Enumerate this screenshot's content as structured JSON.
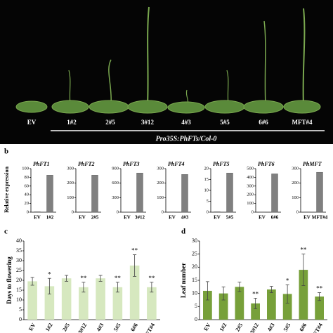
{
  "panel_labels": [
    "b",
    "c",
    "d"
  ],
  "photo": {
    "labels": [
      "EV",
      "1#2",
      "2#5",
      "3#12",
      "4#3",
      "5#5",
      "6#6",
      "MFT#4"
    ],
    "caption": "Pro35S:PhFTs/Col-0"
  },
  "chart_data": [
    {
      "type": "bar",
      "title": "PhFT1",
      "ylabel": "Relative expression",
      "categories": [
        "EV",
        "1#2"
      ],
      "values": [
        1,
        85
      ],
      "color": "#808080",
      "ylim": [
        0,
        100
      ],
      "yticks": [
        0,
        20,
        40,
        60,
        80,
        100
      ]
    },
    {
      "type": "bar",
      "title": "PhFT2",
      "categories": [
        "EV",
        "2#5"
      ],
      "values": [
        2,
        255
      ],
      "color": "#808080",
      "ylim": [
        0,
        300
      ],
      "yticks": [
        0,
        100,
        200,
        300
      ]
    },
    {
      "type": "bar",
      "title": "PhFT3",
      "categories": [
        "EV",
        "3#12"
      ],
      "values": [
        5,
        810
      ],
      "color": "#808080",
      "ylim": [
        0,
        900
      ],
      "yticks": [
        0,
        300,
        600,
        900
      ]
    },
    {
      "type": "bar",
      "title": "PhFT4",
      "categories": [
        "EV",
        "4#3"
      ],
      "values": [
        2,
        260
      ],
      "color": "#808080",
      "ylim": [
        0,
        300
      ],
      "yticks": [
        0,
        100,
        200,
        300
      ]
    },
    {
      "type": "bar",
      "title": "PhFT5",
      "categories": [
        "EV",
        "5#5"
      ],
      "values": [
        0.2,
        18
      ],
      "color": "#808080",
      "ylim": [
        0,
        20
      ],
      "yticks": [
        0,
        5,
        10,
        15,
        20
      ]
    },
    {
      "type": "bar",
      "title": "PhFT6",
      "categories": [
        "EV",
        "6#6"
      ],
      "values": [
        3,
        440
      ],
      "color": "#808080",
      "ylim": [
        0,
        500
      ],
      "yticks": [
        0,
        100,
        200,
        300,
        400,
        500
      ]
    },
    {
      "type": "bar",
      "title": "PhMFT",
      "categories": [
        "EV",
        "MFT#4"
      ],
      "values": [
        2,
        275
      ],
      "color": "#808080",
      "ylim": [
        0,
        300
      ],
      "yticks": [
        0,
        100,
        200,
        300
      ]
    },
    {
      "type": "bar",
      "ylabel": "Days to flowering",
      "categories": [
        "EV",
        "1#2",
        "2#5",
        "3#12",
        "4#3",
        "5#5",
        "6#6",
        "MFT#4"
      ],
      "values": [
        19.5,
        17,
        21,
        16.5,
        21,
        16.5,
        27.5,
        16.5
      ],
      "errors": [
        2,
        4,
        1.5,
        2.5,
        1.5,
        2.5,
        5.5,
        2.5
      ],
      "annotations": [
        null,
        "*",
        null,
        "**",
        null,
        "**",
        "**",
        "**"
      ],
      "color": "#d6e8bf",
      "ylim": [
        0,
        40
      ],
      "yticks": [
        0,
        5,
        10,
        15,
        20,
        25,
        30,
        35,
        40
      ]
    },
    {
      "type": "bar",
      "ylabel": "Leaf number",
      "categories": [
        "EV",
        "1#2",
        "2#5",
        "3#12",
        "4#3",
        "5#5",
        "6#6",
        "MFT#4"
      ],
      "values": [
        11,
        10,
        12.5,
        6.2,
        11.5,
        9.8,
        19,
        8.8
      ],
      "errors": [
        3.5,
        2.5,
        1.8,
        2,
        1.2,
        3.5,
        6,
        1.5
      ],
      "annotations": [
        null,
        null,
        null,
        "**",
        null,
        "*",
        "**",
        "**"
      ],
      "color": "#77a03a",
      "ylim": [
        0,
        30
      ],
      "yticks": [
        0,
        5,
        10,
        15,
        20,
        25,
        30
      ]
    }
  ]
}
